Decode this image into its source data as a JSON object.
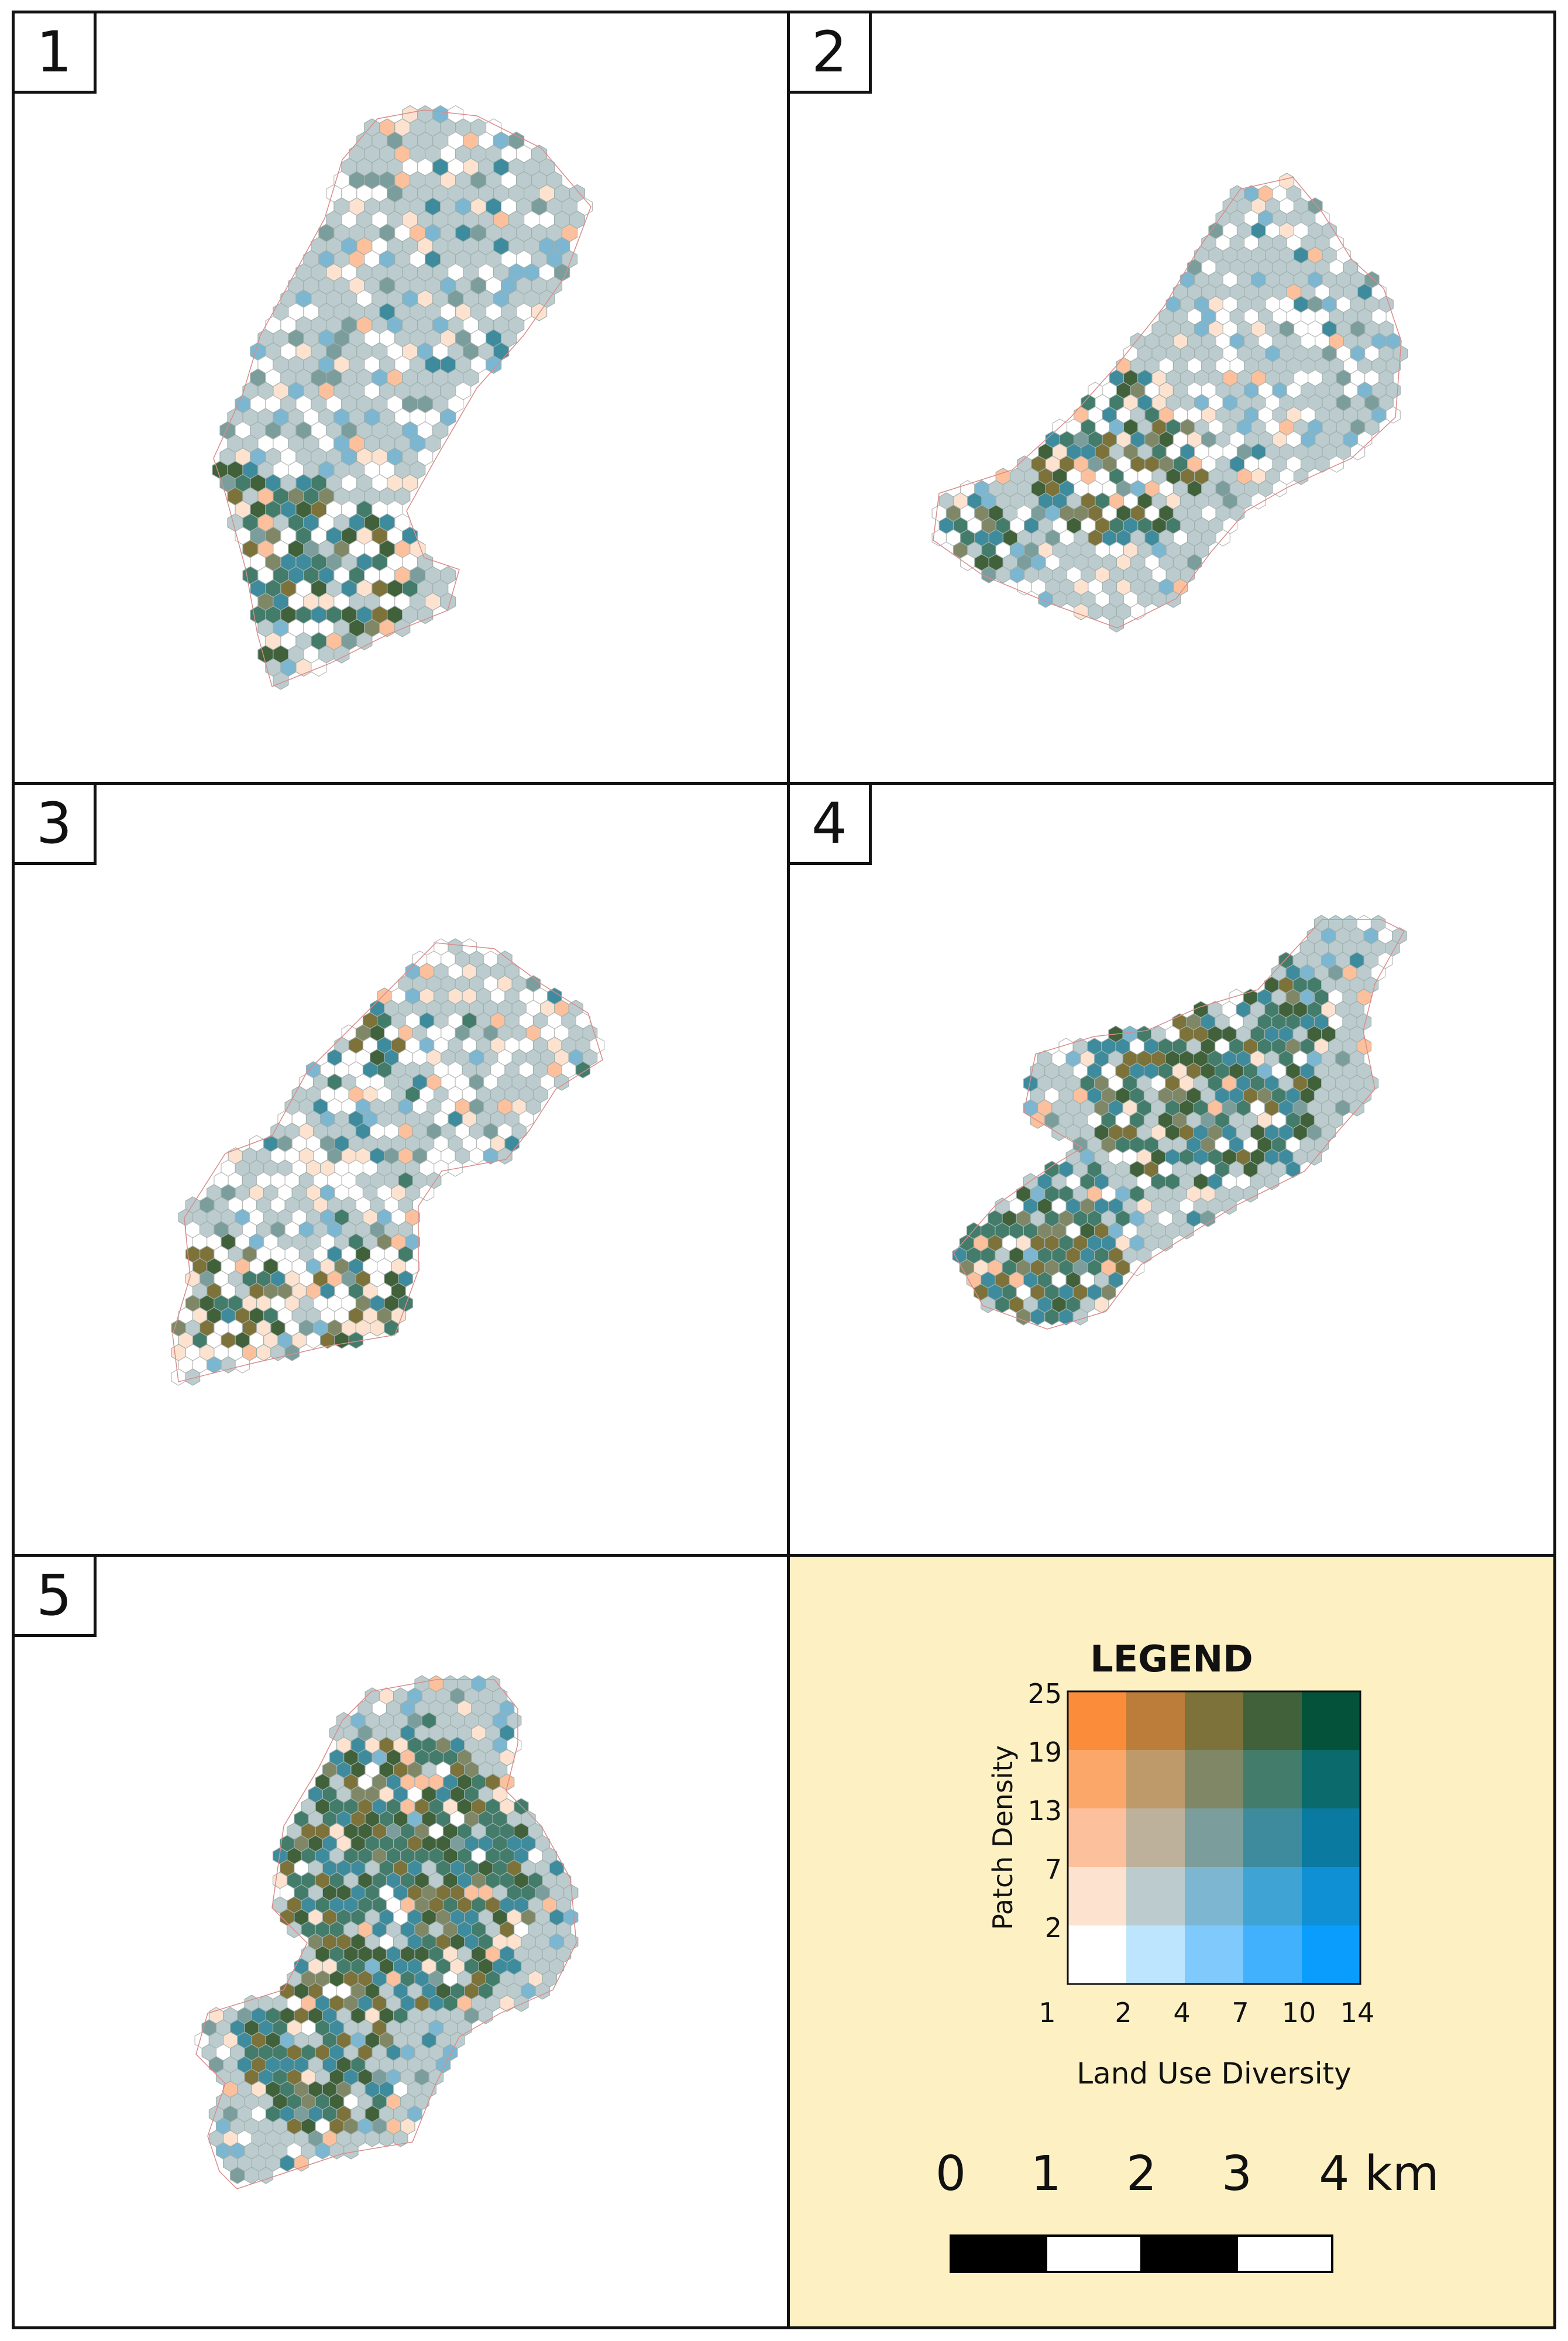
{
  "panels": [
    {
      "number": "1"
    },
    {
      "number": "2"
    },
    {
      "number": "3"
    },
    {
      "number": "4"
    },
    {
      "number": "5"
    }
  ],
  "colors": {
    "border": "#111111",
    "legend_background": "#fdf0c3",
    "district_outline": "#d98c8c",
    "hex_base": "#bcccc9"
  },
  "legend": {
    "title": "LEGEND",
    "y_label": "Patch Density",
    "x_label": "Land Use Diversity",
    "y_ticks": [
      "25",
      "19",
      "13",
      "7",
      "2"
    ],
    "x_ticks": [
      "1",
      "2",
      "4",
      "7",
      "10",
      "14"
    ],
    "grid_colors": [
      [
        "#fb8d3a",
        "#bd7d3a",
        "#7d7239",
        "#40613a",
        "#05523a"
      ],
      [
        "#fca76a",
        "#be9a6b",
        "#7f8766",
        "#437c6a",
        "#0a6a6c"
      ],
      [
        "#fdc09c",
        "#bdb19b",
        "#7b9d9b",
        "#3e8b9d",
        "#0a7aa0"
      ],
      [
        "#fde2cf",
        "#bcccce",
        "#7db6d0",
        "#3fa3d4",
        "#0f8fd4"
      ],
      [
        "#ffffff",
        "#bde5fd",
        "#7fc9fd",
        "#41b0fd",
        "#0a9dfd"
      ]
    ]
  },
  "scale_bar": {
    "labels": [
      "0",
      "1",
      "2",
      "3",
      "4 km"
    ]
  }
}
